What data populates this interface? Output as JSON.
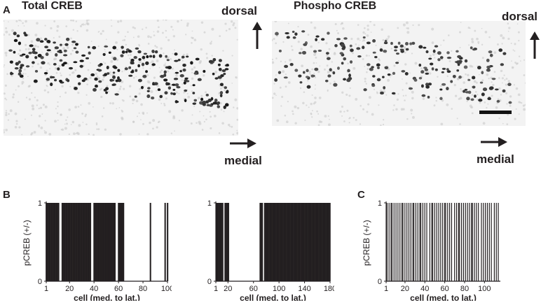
{
  "panelA": {
    "letter": "A",
    "left": {
      "title": "Total CREB",
      "dorsal": "dorsal",
      "medial": "medial"
    },
    "right": {
      "title": "Phospho CREB",
      "dorsal": "dorsal",
      "medial": "medial"
    }
  },
  "panelB": {
    "letter": "B"
  },
  "panelC": {
    "letter": "C"
  },
  "chart_data": [
    {
      "type": "bar",
      "panel": "B-left",
      "ylabel": "pCREB (+/-)",
      "xlabel": "cell (med. to lat.)",
      "yticks": [
        "0",
        "1"
      ],
      "xticks": [
        "1",
        "20",
        "40",
        "60",
        "80",
        "100"
      ],
      "xlim": [
        1,
        100
      ],
      "ylim": [
        0,
        1
      ],
      "negative_cells": [
        12,
        13,
        38,
        39,
        58,
        59,
        65,
        66,
        67,
        68,
        69,
        70,
        71,
        72,
        73,
        74,
        75,
        76,
        77,
        78,
        79,
        80,
        81,
        82,
        83,
        84,
        85,
        87,
        88,
        89,
        90,
        91,
        92,
        93,
        94,
        95,
        96,
        97,
        99
      ]
    },
    {
      "type": "bar",
      "panel": "B-right",
      "ylabel": "",
      "xlabel": "cell (med. to lat.)",
      "yticks": [
        "0",
        "1"
      ],
      "xticks": [
        "1",
        "20",
        "60",
        "100",
        "140",
        "180"
      ],
      "xlim": [
        1,
        180
      ],
      "ylim": [
        0,
        1
      ],
      "negative_cells": [
        13,
        14,
        22,
        23,
        24,
        25,
        26,
        27,
        28,
        29,
        30,
        31,
        32,
        33,
        34,
        35,
        36,
        37,
        38,
        39,
        40,
        41,
        42,
        43,
        44,
        45,
        46,
        47,
        48,
        49,
        50,
        51,
        52,
        53,
        54,
        55,
        56,
        57,
        58,
        59,
        60,
        61,
        62,
        63,
        64,
        65,
        66,
        67,
        68,
        69,
        75,
        76
      ]
    },
    {
      "type": "bar",
      "panel": "C",
      "ylabel": "pCREB (+/-)",
      "xlabel": "cell (med. to lat.)",
      "yticks": [
        "0",
        "1"
      ],
      "xticks": [
        "1",
        "20",
        "40",
        "60",
        "80",
        "100"
      ],
      "xlim": [
        1,
        116
      ],
      "ylim": [
        0,
        1
      ],
      "positive_cells": [
        2,
        4,
        6,
        7,
        9,
        11,
        13,
        15,
        17,
        18,
        20,
        22,
        24,
        26,
        28,
        29,
        31,
        33,
        35,
        36,
        38,
        40,
        42,
        45,
        47,
        48,
        50,
        52,
        54,
        56,
        58,
        60,
        61,
        63,
        65,
        67,
        70,
        72,
        74,
        75,
        77,
        79,
        81,
        83,
        85,
        87,
        88,
        90,
        92,
        94,
        97,
        99,
        101,
        103,
        105,
        107,
        110,
        112,
        114
      ]
    }
  ]
}
